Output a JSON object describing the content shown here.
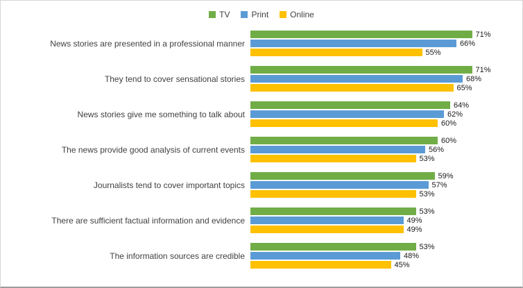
{
  "chart_data": {
    "type": "bar",
    "orientation": "horizontal",
    "title": "",
    "xlabel": "",
    "ylabel": "",
    "xlim": [
      0,
      80
    ],
    "grid": false,
    "legend_position": "top",
    "data_labels": true,
    "value_suffix": "%",
    "categories": [
      "News stories are presented in a professional manner",
      "They tend to cover sensational stories",
      "News stories give me something to talk about",
      "The news provide good analysis of current events",
      "Journalists tend to cover important topics",
      "There are sufficient factual information and evidence",
      "The information sources are credible"
    ],
    "series": [
      {
        "name": "TV",
        "color": "#70AD47",
        "values": [
          71,
          71,
          64,
          60,
          59,
          53,
          53
        ]
      },
      {
        "name": "Print",
        "color": "#5B9BD5",
        "values": [
          66,
          68,
          62,
          56,
          57,
          49,
          48
        ]
      },
      {
        "name": "Online",
        "color": "#FFC000",
        "values": [
          55,
          65,
          60,
          53,
          53,
          49,
          45
        ]
      }
    ]
  }
}
